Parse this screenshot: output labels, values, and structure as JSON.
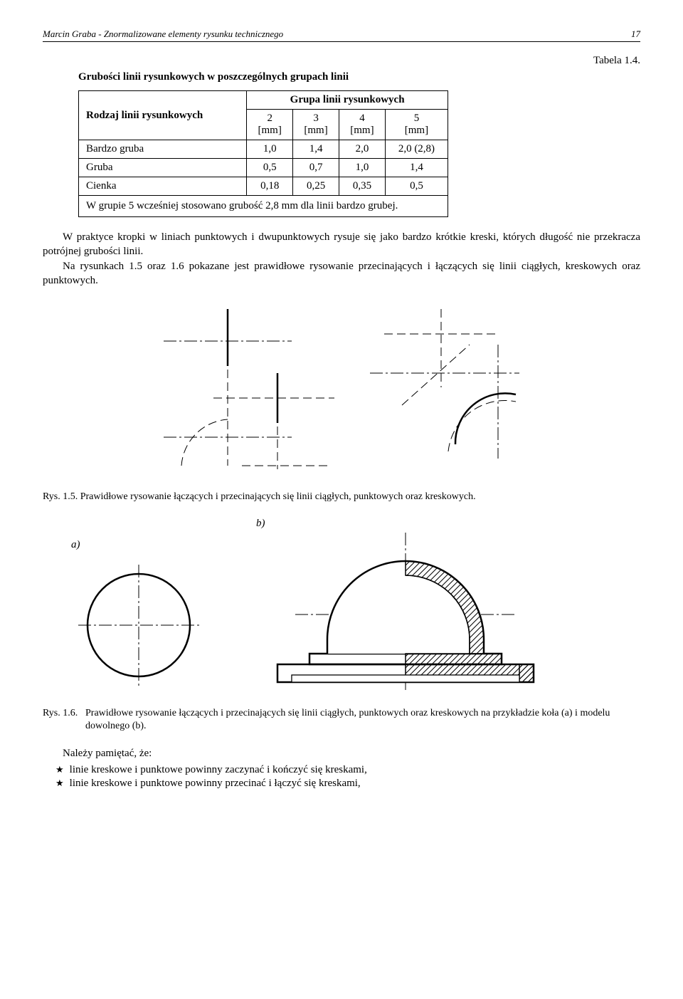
{
  "header": {
    "title": "Marcin Graba - Znormalizowane elementy rysunku technicznego",
    "page": "17"
  },
  "table": {
    "label": "Tabela 1.4.",
    "title": "Grubości linii rysunkowych w poszczególnych grupach linii",
    "rowhead_label": "Rodzaj linii rysunkowych",
    "group_label": "Grupa linii rysunkowych",
    "columns": [
      "2 [mm]",
      "3 [mm]",
      "4 [mm]",
      "5 [mm]"
    ],
    "rows": [
      {
        "name": "Bardzo gruba",
        "vals": [
          "1,0",
          "1,4",
          "2,0",
          "2,0 (2,8)"
        ]
      },
      {
        "name": "Gruba",
        "vals": [
          "0,5",
          "0,7",
          "1,0",
          "1,4"
        ]
      },
      {
        "name": "Cienka",
        "vals": [
          "0,18",
          "0,25",
          "0,35",
          "0,5"
        ]
      }
    ],
    "footnote": "W grupie 5 wcześniej stosowano grubość 2,8 mm dla linii bardzo grubej."
  },
  "paragraph1": "W praktyce kropki w liniach punktowych i dwupunktowych rysuje się jako bardzo krótkie kreski, których długość nie przekracza potrójnej grubości linii.",
  "paragraph2": "Na rysunkach 1.5 oraz 1.6 pokazane jest prawidłowe rysowanie przecinających i łączących się linii ciągłych, kreskowych oraz punktowych.",
  "fig15": {
    "caption_num": "Rys. 1.5.",
    "caption_text": "Prawidłowe rysowanie łączących i przecinających się linii ciągłych, punktowych oraz kreskowych."
  },
  "fig16": {
    "label_a": "a)",
    "label_b": "b)",
    "caption_num": "Rys. 1.6.",
    "caption_text": "Prawidłowe rysowanie łączących i przecinających się linii ciągłych, punktowych oraz kreskowych na przykładzie koła (a) i modelu dowolnego (b)."
  },
  "list": {
    "intro": "Należy pamiętać, że:",
    "items": [
      "linie kreskowe i punktowe powinny zaczynać i kończyć się kreskami,",
      "linie kreskowe i punktowe powinny przecinać i łączyć się kreskami,"
    ]
  },
  "style": {
    "thin": 1,
    "thick": 2.5,
    "dash_long": "12,6",
    "dash_dot": "18,4,3,4",
    "color": "#000000"
  }
}
